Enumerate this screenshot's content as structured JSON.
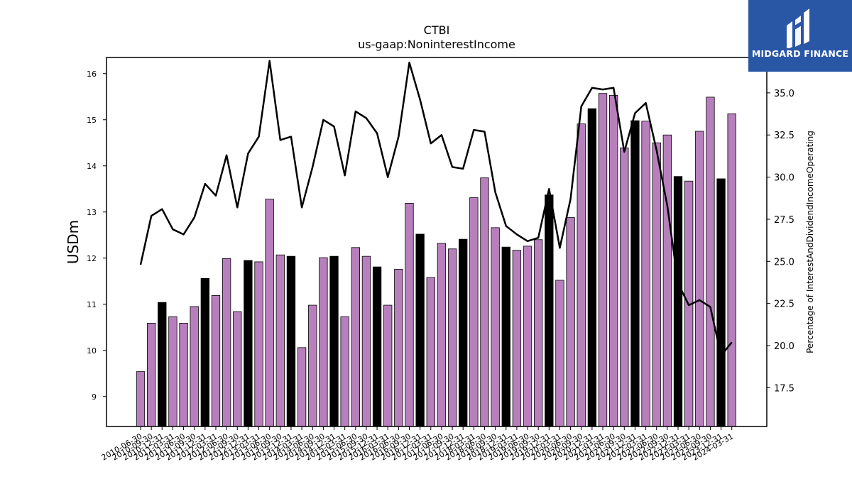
{
  "chart_data": {
    "type": "bar",
    "title": "CTBI",
    "subtitle": "us-gaap:NoninterestIncome",
    "ylabel": "USDm",
    "y2label": "Percentage of InterestAndDividendIncomeOperating",
    "ylim": [
      8.35,
      16.35
    ],
    "y2lim": [
      15.2,
      37.1
    ],
    "yticks": [
      9,
      10,
      11,
      12,
      13,
      14,
      15,
      16
    ],
    "y2ticks": [
      "17.5",
      "20.0",
      "22.5",
      "25.0",
      "27.5",
      "30.0",
      "32.5",
      "35.0"
    ],
    "y2tick_values": [
      17.5,
      20.0,
      22.5,
      25.0,
      27.5,
      30.0,
      32.5,
      35.0
    ],
    "grid": false,
    "colors": {
      "bar_default": "#b87fbd",
      "bar_highlight": "#000000",
      "line": "#000000"
    },
    "categories": [
      "2010-06-30",
      "2010-09-30",
      "2010-12-31",
      "2011-03-31",
      "2011-06-30",
      "2011-09-30",
      "2011-12-31",
      "2012-03-31",
      "2012-06-30",
      "2012-09-30",
      "2012-12-31",
      "2013-03-31",
      "2013-06-30",
      "2013-09-30",
      "2013-12-31",
      "2014-03-31",
      "2014-06-30",
      "2014-09-30",
      "2014-12-31",
      "2015-03-31",
      "2015-06-30",
      "2015-09-30",
      "2015-12-31",
      "2016-03-31",
      "2016-06-30",
      "2016-09-30",
      "2016-12-31",
      "2017-03-31",
      "2017-06-30",
      "2017-09-30",
      "2017-12-31",
      "2018-03-31",
      "2018-06-30",
      "2018-09-30",
      "2018-12-31",
      "2019-03-31",
      "2019-06-30",
      "2019-09-30",
      "2019-12-31",
      "2020-03-31",
      "2020-06-30",
      "2020-09-30",
      "2020-12-31",
      "2021-03-31",
      "2021-06-30",
      "2021-09-30",
      "2021-12-31",
      "2022-03-31",
      "2022-06-30",
      "2022-09-30",
      "2022-12-31",
      "2023-03-31",
      "2023-06-30",
      "2023-09-30",
      "2023-12-31",
      "2024-03-31"
    ],
    "series": [
      {
        "type": "bar",
        "values": [
          9.54,
          10.59,
          11.04,
          10.73,
          10.59,
          10.95,
          11.56,
          11.19,
          11.99,
          10.84,
          11.95,
          11.92,
          13.28,
          12.07,
          12.04,
          10.06,
          10.98,
          12.01,
          12.04,
          10.73,
          12.23,
          12.04,
          11.81,
          10.98,
          11.76,
          13.19,
          12.52,
          11.58,
          12.32,
          12.2,
          12.41,
          13.31,
          13.74,
          12.66,
          12.24,
          12.17,
          12.26,
          12.4,
          13.37,
          11.52,
          12.88,
          14.91,
          15.24,
          15.57,
          15.53,
          14.39,
          14.98,
          14.97,
          14.5,
          14.67,
          13.77,
          13.67,
          14.75,
          15.49,
          13.72,
          15.13
        ],
        "highlight": [
          false,
          false,
          true,
          false,
          false,
          false,
          true,
          false,
          false,
          false,
          true,
          false,
          false,
          false,
          true,
          false,
          false,
          false,
          true,
          false,
          false,
          false,
          true,
          false,
          false,
          false,
          true,
          false,
          false,
          false,
          true,
          false,
          false,
          false,
          true,
          false,
          false,
          false,
          true,
          false,
          false,
          false,
          true,
          false,
          false,
          false,
          true,
          false,
          false,
          false,
          true,
          false,
          false,
          false,
          true,
          false
        ]
      },
      {
        "type": "line",
        "axis": "right",
        "values": [
          24.8,
          27.7,
          28.1,
          26.9,
          26.6,
          27.6,
          29.6,
          28.9,
          31.3,
          28.2,
          31.4,
          32.4,
          36.9,
          32.2,
          32.4,
          28.2,
          30.6,
          33.4,
          33.0,
          30.1,
          33.9,
          33.5,
          32.6,
          30.0,
          32.4,
          36.8,
          34.6,
          32.0,
          32.5,
          30.6,
          30.5,
          32.8,
          32.7,
          29.1,
          27.1,
          26.6,
          26.2,
          26.4,
          29.3,
          25.8,
          28.7,
          34.2,
          35.3,
          35.2,
          35.3,
          31.5,
          33.8,
          34.4,
          31.6,
          28.3,
          23.7,
          22.4,
          22.7,
          22.3,
          19.4,
          20.2
        ]
      }
    ]
  },
  "logo": {
    "text": "MIDGARD FINANCE"
  }
}
